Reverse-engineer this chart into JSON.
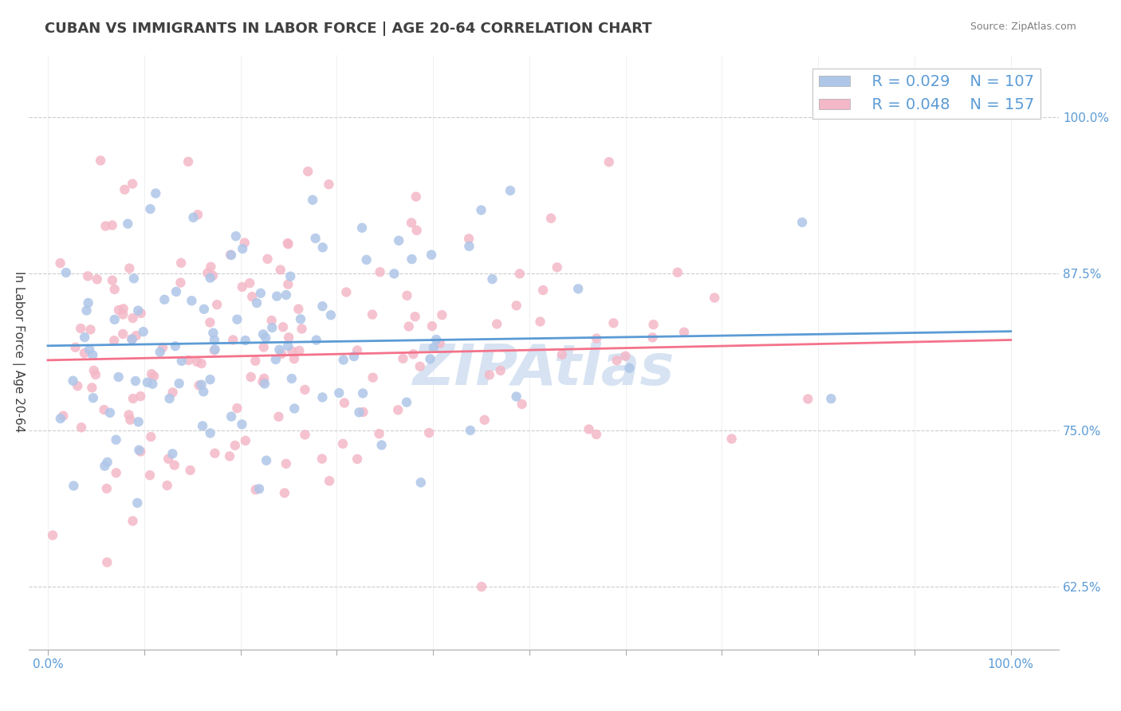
{
  "title": "CUBAN VS IMMIGRANTS IN LABOR FORCE | AGE 20-64 CORRELATION CHART",
  "source_text": "Source: ZipAtlas.com",
  "xlabel": "",
  "ylabel": "In Labor Force | Age 20-64",
  "x_ticks": [
    0.0,
    0.1,
    0.2,
    0.3,
    0.4,
    0.5,
    0.6,
    0.7,
    0.8,
    0.9,
    1.0
  ],
  "x_tick_labels": [
    "0.0%",
    "",
    "",
    "",
    "",
    "",
    "",
    "",
    "",
    "",
    "100.0%"
  ],
  "y_tick_labels": [
    "62.5%",
    "75.0%",
    "87.5%",
    "100.0%"
  ],
  "y_ticks": [
    0.625,
    0.75,
    0.875,
    1.0
  ],
  "xlim": [
    -0.02,
    1.05
  ],
  "ylim": [
    0.575,
    1.05
  ],
  "cubans_R": 0.029,
  "cubans_N": 107,
  "immigrants_R": 0.048,
  "immigrants_N": 157,
  "cubans_color": "#aec6e8",
  "immigrants_color": "#f4b8c8",
  "cubans_line_color": "#5b9bd5",
  "immigrants_line_color": "#f4728a",
  "legend_box_color": "#ffffff",
  "background_color": "#ffffff",
  "grid_color": "#cccccc",
  "title_color": "#404040",
  "axis_label_color": "#404040",
  "tick_label_color": "#5b9bd5",
  "source_color": "#808080",
  "watermark_text": "ZIPAtlas",
  "watermark_color": "#d0dff0",
  "legend_text_color": "#5b9bd5",
  "legend_font_size": 14,
  "title_font_size": 13,
  "axis_label_font_size": 11,
  "tick_font_size": 11
}
